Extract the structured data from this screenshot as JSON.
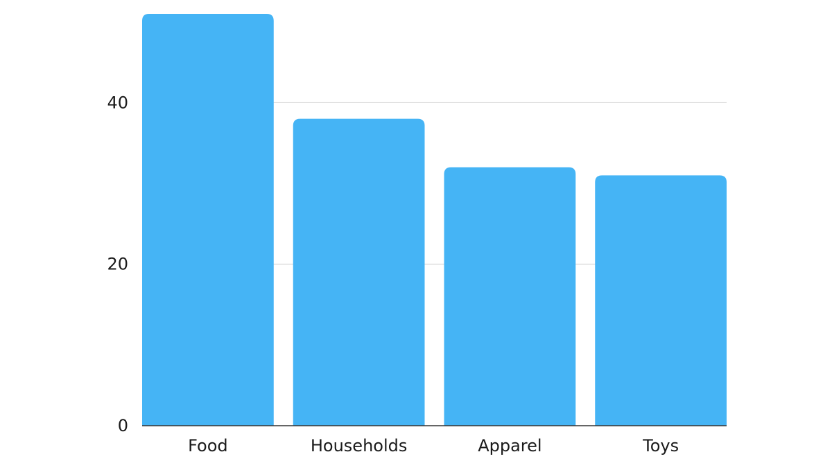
{
  "chart_data": {
    "type": "bar",
    "categories": [
      "Food",
      "Households",
      "Apparel",
      "Toys"
    ],
    "values": [
      51,
      38,
      32,
      31
    ],
    "title": "",
    "xlabel": "",
    "ylabel": "",
    "ylim": [
      0,
      51
    ],
    "yticks": [
      0,
      20,
      40
    ],
    "grid": true,
    "legend": "none",
    "colors": {
      "bar": "#45b4f5",
      "grid": "#cccccc",
      "axis": "#333333",
      "text": "#1a1a1a"
    }
  }
}
